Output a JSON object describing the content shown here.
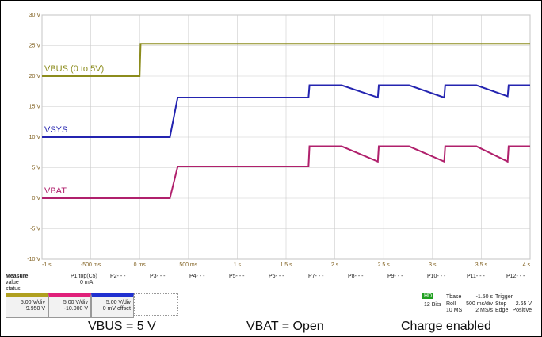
{
  "chart_data": {
    "type": "line",
    "x": [
      -1,
      0,
      0.01,
      0.31,
      0.39,
      1.73,
      1.74,
      2.07,
      2.44,
      2.45,
      2.76,
      3.12,
      3.13,
      3.45,
      3.77,
      3.78,
      4
    ],
    "series": [
      {
        "name": "VBUS (0 to 5V)",
        "color": "#8c8c1c",
        "values": [
          20,
          20,
          25.3,
          25.3,
          25.3,
          25.3,
          25.3,
          25.3,
          25.3,
          25.3,
          25.3,
          25.3,
          25.3,
          25.3,
          25.3,
          25.3,
          25.3
        ]
      },
      {
        "name": "VSYS",
        "color": "#2424b0",
        "values": [
          10,
          10,
          10,
          10,
          16.5,
          16.5,
          18.5,
          18.5,
          16.5,
          18.5,
          18.5,
          16.5,
          18.5,
          18.5,
          16.7,
          18.5,
          18.5
        ]
      },
      {
        "name": "VBAT",
        "color": "#b0206c",
        "values": [
          0,
          0,
          0,
          0,
          5.2,
          5.2,
          8.5,
          8.5,
          6,
          8.5,
          8.5,
          6,
          8.5,
          8.5,
          6,
          8.5,
          8.5
        ]
      }
    ],
    "xlim": [
      -1,
      4
    ],
    "ylim": [
      -10,
      30
    ],
    "xticks": [
      {
        "value": -1,
        "label": "-1 s"
      },
      {
        "value": -0.5,
        "label": "-500 ms"
      },
      {
        "value": 0,
        "label": "0 ms"
      },
      {
        "value": 0.5,
        "label": "500 ms"
      },
      {
        "value": 1,
        "label": "1 s"
      },
      {
        "value": 1.5,
        "label": "1.5 s"
      },
      {
        "value": 2,
        "label": "2 s"
      },
      {
        "value": 2.5,
        "label": "2.5 s"
      },
      {
        "value": 3,
        "label": "3 s"
      },
      {
        "value": 3.5,
        "label": "3.5 s"
      },
      {
        "value": 4,
        "label": "4 s"
      }
    ],
    "yticks": [
      {
        "value": 30,
        "label": "30 V"
      },
      {
        "value": 25,
        "label": "25 V"
      },
      {
        "value": 20,
        "label": "20 V"
      },
      {
        "value": 15,
        "label": "15 V"
      },
      {
        "value": 10,
        "label": "10 V"
      },
      {
        "value": 5,
        "label": "5 V"
      },
      {
        "value": 0,
        "label": "0 V"
      },
      {
        "value": -5,
        "label": "-5 V"
      },
      {
        "value": -10,
        "label": "-10 V"
      }
    ],
    "grid": true
  },
  "scope_panel": {
    "measure": "Measure",
    "rows": [
      "value",
      "status"
    ],
    "params": [
      "P1:top(C5)",
      "P2- - -",
      "P3- - -",
      "P4- - -",
      "P5- - -",
      "P6- - -",
      "P7- - -",
      "P8- - -",
      "P9- - -",
      "P10- - -",
      "P11- - -",
      "P12- - -"
    ],
    "p1_value": "0 mA",
    "channels": [
      {
        "scale": "5.00 V/div",
        "offset": "9.950 V"
      },
      {
        "scale": "5.00 V/div",
        "offset": "-10.000 V"
      },
      {
        "scale": "5.00 V/div",
        "offset": "0 mV offset"
      }
    ],
    "acq": {
      "hd": "HD",
      "bits": "12 Bits",
      "tbase": "Tbase",
      "tbase_val": "-1.50 s",
      "roll": "Roll",
      "div": "500 ms/div",
      "ms": "10 MS",
      "rate": "2 MS/s",
      "trigger": "Trigger",
      "stop": "Stop",
      "level": "2.65 V",
      "edge": "Edge",
      "slope": "Positive"
    }
  },
  "caption": [
    "VBUS = 5 V",
    "VBAT = Open",
    "Charge enabled"
  ]
}
